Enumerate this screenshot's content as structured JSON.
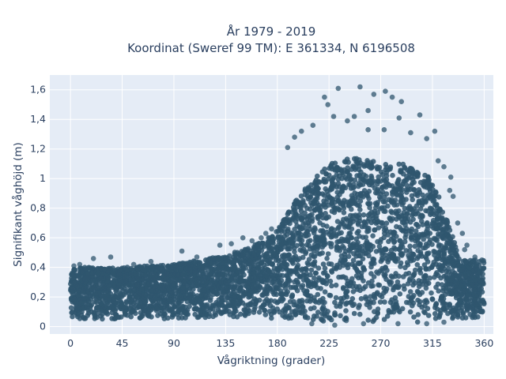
{
  "chart_data": {
    "type": "scatter",
    "title_lines": [
      "År 1979 - 2019",
      "Koordinat (Sweref 99 TM): E 361334, N 6196508"
    ],
    "xlabel": "Vågriktning (grader)",
    "ylabel": "Signifikant våghöjd (m)",
    "xlim": [
      -18,
      368
    ],
    "ylim": [
      -0.05,
      1.7
    ],
    "x_ticks": [
      0,
      45,
      90,
      135,
      180,
      225,
      270,
      315,
      360
    ],
    "y_ticks": [
      0,
      0.2,
      0.4,
      0.6,
      0.8,
      1,
      1.2,
      1.4,
      1.6
    ],
    "y_tick_labels": [
      "0",
      "0,2",
      "0,4",
      "0,6",
      "0,8",
      "1",
      "1,2",
      "1,4",
      "1,6"
    ],
    "grid": true,
    "legend": "none",
    "marker_color": "#2f566e",
    "background_color": "#e5ecf6",
    "envelope": {
      "description_of_shape": "upper bound of dense point cloud by direction",
      "x": [
        0,
        45,
        90,
        135,
        160,
        180,
        200,
        225,
        250,
        270,
        290,
        315,
        340,
        360
      ],
      "y_max": [
        0.4,
        0.4,
        0.42,
        0.48,
        0.55,
        0.65,
        0.9,
        1.1,
        1.15,
        1.1,
        1.1,
        1.0,
        0.45,
        0.45
      ],
      "y_min": [
        0.05,
        0.05,
        0.05,
        0.06,
        0.06,
        0.05,
        0.04,
        0.03,
        0.03,
        0.03,
        0.03,
        0.03,
        0.05,
        0.06
      ]
    },
    "outliers": [
      {
        "x": 233,
        "y": 1.61
      },
      {
        "x": 252,
        "y": 1.62
      },
      {
        "x": 274,
        "y": 1.59
      },
      {
        "x": 264,
        "y": 1.57
      },
      {
        "x": 280,
        "y": 1.55
      },
      {
        "x": 221,
        "y": 1.55
      },
      {
        "x": 224,
        "y": 1.5
      },
      {
        "x": 288,
        "y": 1.52
      },
      {
        "x": 259,
        "y": 1.46
      },
      {
        "x": 286,
        "y": 1.41
      },
      {
        "x": 247,
        "y": 1.42
      },
      {
        "x": 229,
        "y": 1.42
      },
      {
        "x": 304,
        "y": 1.43
      },
      {
        "x": 241,
        "y": 1.39
      },
      {
        "x": 211,
        "y": 1.36
      },
      {
        "x": 273,
        "y": 1.33
      },
      {
        "x": 296,
        "y": 1.31
      },
      {
        "x": 317,
        "y": 1.32
      },
      {
        "x": 201,
        "y": 1.32
      },
      {
        "x": 259,
        "y": 1.33
      },
      {
        "x": 195,
        "y": 1.28
      },
      {
        "x": 310,
        "y": 1.27
      },
      {
        "x": 189,
        "y": 1.21
      },
      {
        "x": 320,
        "y": 1.12
      },
      {
        "x": 325,
        "y": 1.08
      },
      {
        "x": 331,
        "y": 1.01
      },
      {
        "x": 330,
        "y": 0.92
      },
      {
        "x": 333,
        "y": 0.88
      },
      {
        "x": 337,
        "y": 0.7
      },
      {
        "x": 341,
        "y": 0.63
      },
      {
        "x": 345,
        "y": 0.55
      },
      {
        "x": 343,
        "y": 0.52
      },
      {
        "x": 166,
        "y": 0.6
      },
      {
        "x": 150,
        "y": 0.6
      },
      {
        "x": 158,
        "y": 0.58
      },
      {
        "x": 170,
        "y": 0.63
      },
      {
        "x": 175,
        "y": 0.66
      },
      {
        "x": 130,
        "y": 0.55
      },
      {
        "x": 140,
        "y": 0.56
      },
      {
        "x": 97,
        "y": 0.51
      },
      {
        "x": 110,
        "y": 0.47
      },
      {
        "x": 20,
        "y": 0.46
      },
      {
        "x": 35,
        "y": 0.47
      },
      {
        "x": 70,
        "y": 0.44
      },
      {
        "x": 3,
        "y": 0.41
      },
      {
        "x": 8,
        "y": 0.42
      },
      {
        "x": 55,
        "y": 0.42
      },
      {
        "x": 85,
        "y": 0.41
      },
      {
        "x": 358,
        "y": 0.45
      },
      {
        "x": 352,
        "y": 0.47
      },
      {
        "x": 348,
        "y": 0.42
      },
      {
        "x": 230,
        "y": 0.01
      },
      {
        "x": 255,
        "y": 0.02
      },
      {
        "x": 285,
        "y": 0.02
      },
      {
        "x": 310,
        "y": 0.02
      },
      {
        "x": 325,
        "y": 0.03
      },
      {
        "x": 210,
        "y": 0.02
      },
      {
        "x": 240,
        "y": 0.04
      }
    ]
  }
}
